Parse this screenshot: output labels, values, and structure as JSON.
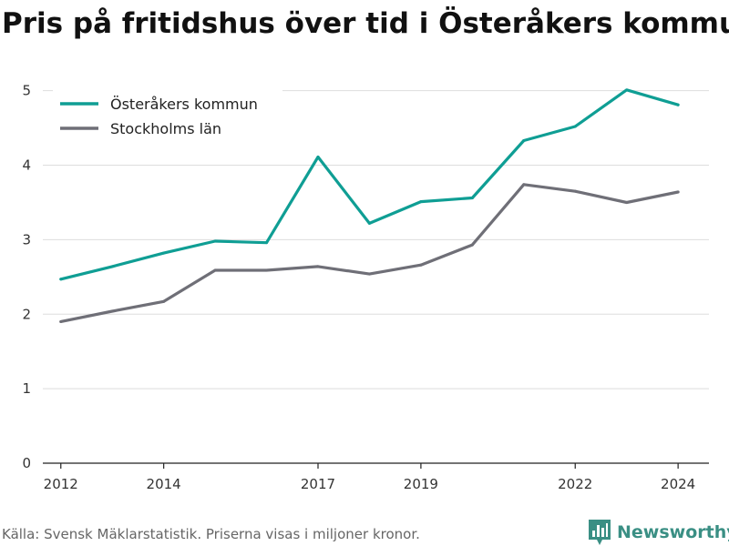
{
  "chart_data": {
    "type": "line",
    "title": "Pris på fritidshus över tid i Österåkers kommun",
    "xlabel": "",
    "ylabel": "",
    "x": [
      2012,
      2013,
      2014,
      2015,
      2016,
      2017,
      2018,
      2019,
      2020,
      2021,
      2022,
      2023,
      2024
    ],
    "x_ticks": [
      "2012",
      "2014",
      "2017",
      "2019",
      "2022",
      "2024"
    ],
    "y_ticks": [
      "0",
      "1",
      "2",
      "3",
      "4",
      "5"
    ],
    "xlim": [
      2011.65,
      2024.6
    ],
    "ylim": [
      0,
      5.35
    ],
    "grid": "horizontal",
    "legend_position": "top-left",
    "series": [
      {
        "name": "Österåkers kommun",
        "color": "#0f9e94",
        "values": [
          2.47,
          2.64,
          2.82,
          2.98,
          2.96,
          4.11,
          3.22,
          3.51,
          3.56,
          4.33,
          4.52,
          5.01,
          4.81
        ]
      },
      {
        "name": "Stockholms län",
        "color": "#6f6f77",
        "values": [
          1.9,
          2.04,
          2.17,
          2.59,
          2.59,
          2.64,
          2.54,
          2.66,
          2.93,
          3.74,
          3.65,
          3.5,
          3.64
        ]
      }
    ]
  },
  "footer": {
    "source": "Källa: Svensk Mäklarstatistik. Priserna visas i miljoner kronor."
  },
  "brand": {
    "name": "Newsworthy",
    "icon": "newsworthy-logo-icon",
    "color": "#3a8f84"
  }
}
